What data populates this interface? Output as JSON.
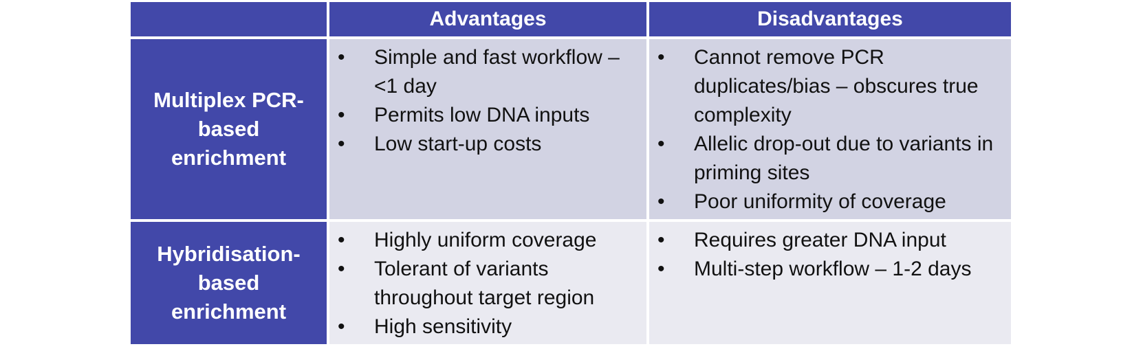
{
  "table": {
    "headers": [
      "",
      "Advantages",
      "Disadvantages"
    ],
    "rows": [
      {
        "label": "Multiplex PCR-based enrichment",
        "advantages": [
          "Simple and fast workflow – <1 day",
          "Permits low DNA inputs",
          "Low start-up costs"
        ],
        "disadvantages": [
          "Cannot remove PCR duplicates/bias – obscures true complexity",
          "Allelic drop-out due to variants in priming sites",
          "Poor uniformity of coverage"
        ]
      },
      {
        "label": "Hybridisation-based enrichment",
        "advantages": [
          "Highly uniform coverage",
          "Tolerant of variants throughout target region",
          "High sensitivity"
        ],
        "disadvantages": [
          "Requires greater DNA input",
          "Multi-step workflow – 1-2 days"
        ]
      }
    ],
    "bullet": "•",
    "colors": {
      "header": "#4248a9",
      "row_dark": "#d2d3e3",
      "row_light": "#eaeaf1"
    }
  }
}
